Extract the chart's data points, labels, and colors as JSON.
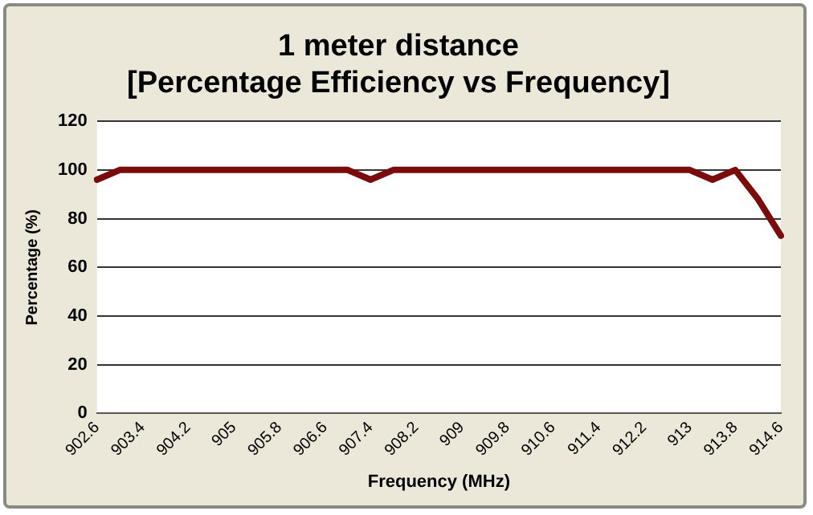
{
  "chart_data": {
    "type": "line",
    "title": "1 meter distance\n[Percentage Efficiency vs Frequency]",
    "xlabel": "Frequency (MHz)",
    "ylabel": "Percentage (%)",
    "categories": [
      "902.6",
      null,
      "903.4",
      null,
      "904.2",
      null,
      "905",
      null,
      "905.8",
      null,
      "906.6",
      null,
      "907.4",
      null,
      "908.2",
      null,
      "909",
      null,
      "909.8",
      null,
      "910.6",
      null,
      "911.4",
      null,
      "912.2",
      null,
      "913",
      null,
      "913.8",
      null,
      "914.6"
    ],
    "series": [
      {
        "color": "#7a0c0c",
        "values": [
          96,
          100,
          100,
          100,
          100,
          100,
          100,
          100,
          100,
          100,
          100,
          100,
          96,
          100,
          100,
          100,
          100,
          100,
          100,
          100,
          100,
          100,
          100,
          100,
          100,
          100,
          100,
          96,
          100,
          88,
          73
        ]
      }
    ],
    "ylim": [
      0,
      120
    ],
    "yticks": [
      0,
      20,
      40,
      60,
      80,
      100,
      120
    ],
    "grid": "y",
    "legend": false,
    "marker": "none",
    "line_style": "solid"
  }
}
